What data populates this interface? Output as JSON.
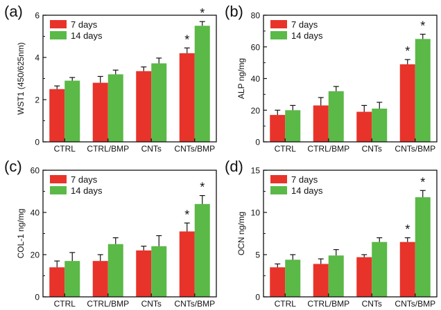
{
  "legend_labels": [
    "7 days",
    "14 days"
  ],
  "colors": {
    "series_1": "#e8332a",
    "series_2": "#5ab947"
  },
  "chart_data": [
    {
      "type": "bar",
      "panel_label": "(a)",
      "ylabel": "WST1 (450/625nm)",
      "categories": [
        "CTRL",
        "CTRL/BMP",
        "CNTs",
        "CNTs/BMP"
      ],
      "ylim": [
        0,
        6
      ],
      "yticks": [
        0,
        2,
        4,
        6
      ],
      "series": [
        {
          "name": "7 days",
          "values": [
            2.5,
            2.8,
            3.35,
            4.2
          ],
          "errors": [
            0.15,
            0.3,
            0.2,
            0.25
          ]
        },
        {
          "name": "14 days",
          "values": [
            2.9,
            3.2,
            3.72,
            5.5
          ],
          "errors": [
            0.15,
            0.2,
            0.25,
            0.2
          ]
        }
      ],
      "annotations": [
        "*",
        "*"
      ],
      "legend": "top-left",
      "grid": false
    },
    {
      "type": "bar",
      "panel_label": "(b)",
      "ylabel": "ALP ng/mg",
      "categories": [
        "CTRL",
        "CTRL/BMP",
        "CNTs",
        "CNTs/BMP"
      ],
      "ylim": [
        0,
        80
      ],
      "yticks": [
        0,
        20,
        40,
        60,
        80
      ],
      "series": [
        {
          "name": "7 days",
          "values": [
            17,
            23,
            19,
            49
          ],
          "errors": [
            3,
            5,
            4,
            3
          ]
        },
        {
          "name": "14 days",
          "values": [
            20,
            32,
            21,
            65
          ],
          "errors": [
            3,
            3,
            4,
            3
          ]
        }
      ],
      "annotations": [
        "*",
        "*"
      ],
      "legend": "top-left",
      "grid": false
    },
    {
      "type": "bar",
      "panel_label": "(c)",
      "ylabel": "COL-1 ng/mg",
      "categories": [
        "CTRL",
        "CTRL/BMP",
        "CNTs",
        "CNTs/BMP"
      ],
      "ylim": [
        0,
        60
      ],
      "yticks": [
        0,
        20,
        40,
        60
      ],
      "series": [
        {
          "name": "7 days",
          "values": [
            14,
            17,
            22,
            31
          ],
          "errors": [
            3,
            3,
            2,
            4
          ]
        },
        {
          "name": "14 days",
          "values": [
            17,
            25,
            24,
            44
          ],
          "errors": [
            4,
            3,
            5,
            4
          ]
        }
      ],
      "annotations": [
        "*",
        "*"
      ],
      "legend": "top-left",
      "grid": false
    },
    {
      "type": "bar",
      "panel_label": "(d)",
      "ylabel": "OCN ng/mg",
      "categories": [
        "CTRL",
        "CTRL/BMP",
        "CNTs",
        "CNTs/BMP"
      ],
      "ylim": [
        0,
        15
      ],
      "yticks": [
        0,
        5,
        10,
        15
      ],
      "series": [
        {
          "name": "7 days",
          "values": [
            3.5,
            3.9,
            4.7,
            6.5
          ],
          "errors": [
            0.4,
            0.6,
            0.3,
            0.5
          ]
        },
        {
          "name": "14 days",
          "values": [
            4.4,
            4.9,
            6.5,
            11.8
          ],
          "errors": [
            0.6,
            0.7,
            0.5,
            0.8
          ]
        }
      ],
      "annotations": [
        "*",
        "*"
      ],
      "legend": "top-left",
      "grid": false
    }
  ]
}
